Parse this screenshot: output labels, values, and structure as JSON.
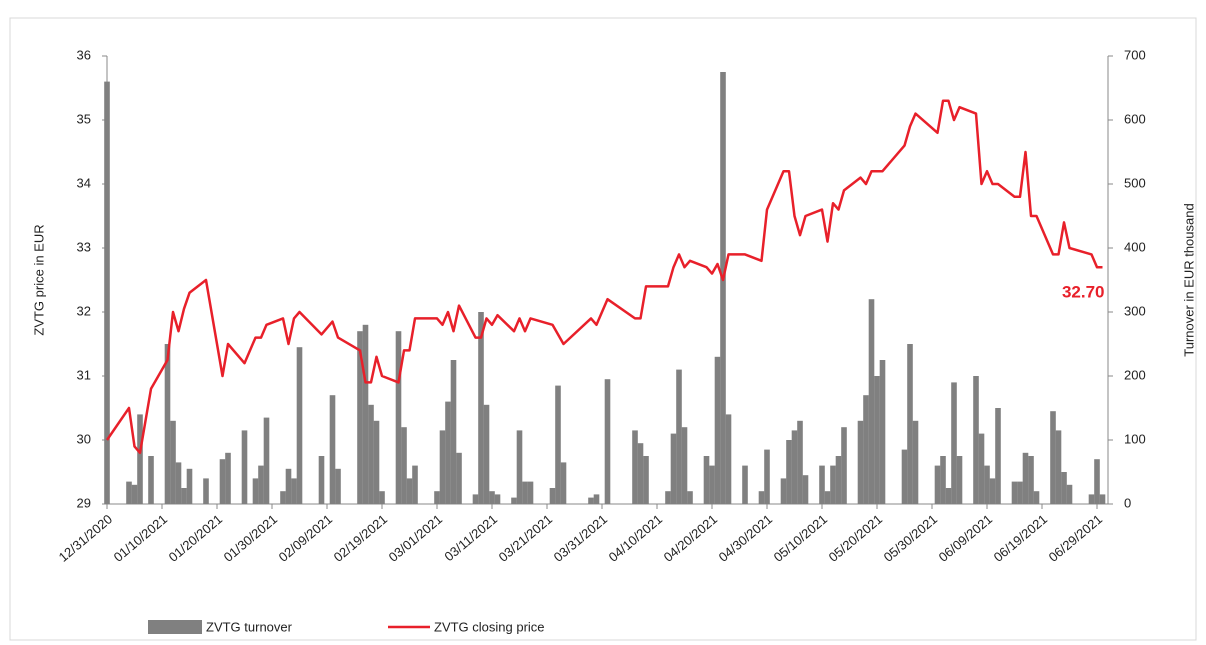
{
  "chart_data": {
    "type": "bar-line",
    "ylabel": "ZVTG price in EUR",
    "y2label": "Turnover in EUR thousand",
    "annotation": "32.70",
    "x": [
      "12/31/2020",
      "01/04/2021",
      "01/05/2021",
      "01/06/2021",
      "01/08/2021",
      "01/11/2021",
      "01/12/2021",
      "01/13/2021",
      "01/14/2021",
      "01/15/2021",
      "01/18/2021",
      "01/21/2021",
      "01/22/2021",
      "01/25/2021",
      "01/27/2021",
      "01/28/2021",
      "01/29/2021",
      "02/01/2021",
      "02/02/2021",
      "02/03/2021",
      "02/04/2021",
      "02/08/2021",
      "02/10/2021",
      "02/11/2021",
      "02/15/2021",
      "02/16/2021",
      "02/17/2021",
      "02/18/2021",
      "02/19/2021",
      "02/22/2021",
      "02/23/2021",
      "02/24/2021",
      "02/25/2021",
      "03/01/2021",
      "03/02/2021",
      "03/03/2021",
      "03/04/2021",
      "03/05/2021",
      "03/08/2021",
      "03/09/2021",
      "03/10/2021",
      "03/11/2021",
      "03/12/2021",
      "03/15/2021",
      "03/16/2021",
      "03/17/2021",
      "03/18/2021",
      "03/22/2021",
      "03/23/2021",
      "03/24/2021",
      "03/29/2021",
      "03/30/2021",
      "04/01/2021",
      "04/06/2021",
      "04/07/2021",
      "04/08/2021",
      "04/12/2021",
      "04/13/2021",
      "04/14/2021",
      "04/15/2021",
      "04/16/2021",
      "04/19/2021",
      "04/20/2021",
      "04/21/2021",
      "04/22/2021",
      "04/23/2021",
      "04/26/2021",
      "04/29/2021",
      "04/30/2021",
      "05/03/2021",
      "05/04/2021",
      "05/05/2021",
      "05/06/2021",
      "05/07/2021",
      "05/10/2021",
      "05/11/2021",
      "05/12/2021",
      "05/13/2021",
      "05/14/2021",
      "05/17/2021",
      "05/18/2021",
      "05/19/2021",
      "05/20/2021",
      "05/21/2021",
      "05/25/2021",
      "05/26/2021",
      "05/27/2021",
      "05/31/2021",
      "06/01/2021",
      "06/02/2021",
      "06/03/2021",
      "06/04/2021",
      "06/07/2021",
      "06/08/2021",
      "06/09/2021",
      "06/10/2021",
      "06/11/2021",
      "06/14/2021",
      "06/15/2021",
      "06/16/2021",
      "06/17/2021",
      "06/18/2021",
      "06/21/2021",
      "06/22/2021",
      "06/23/2021",
      "06/24/2021",
      "06/28/2021",
      "06/29/2021",
      "06/30/2021"
    ],
    "series": [
      {
        "name": "ZVTG turnover",
        "type": "bar",
        "axis": "y2",
        "color": "#808080",
        "values": [
          660,
          35,
          30,
          140,
          75,
          250,
          130,
          65,
          25,
          55,
          40,
          70,
          80,
          115,
          40,
          60,
          135,
          20,
          55,
          40,
          245,
          75,
          170,
          55,
          270,
          280,
          155,
          130,
          20,
          270,
          120,
          40,
          60,
          20,
          115,
          160,
          225,
          80,
          15,
          300,
          155,
          20,
          15,
          10,
          115,
          35,
          35,
          25,
          185,
          65,
          10,
          15,
          195,
          115,
          95,
          75,
          20,
          110,
          210,
          120,
          20,
          75,
          60,
          230,
          675,
          140,
          60,
          20,
          85,
          40,
          100,
          115,
          130,
          45,
          60,
          20,
          60,
          75,
          120,
          130,
          170,
          320,
          200,
          225,
          85,
          250,
          130,
          60,
          75,
          25,
          190,
          75,
          200,
          110,
          60,
          40,
          150,
          35,
          35,
          80,
          75,
          20,
          145,
          115,
          50,
          30,
          15,
          70,
          15
        ]
      },
      {
        "name": "ZVTG closing price",
        "type": "line",
        "axis": "y",
        "color": "#e8202a",
        "values": [
          30.0,
          30.5,
          29.9,
          29.8,
          30.8,
          31.25,
          32.0,
          31.7,
          32.05,
          32.3,
          32.5,
          31.0,
          31.5,
          31.2,
          31.6,
          31.6,
          31.8,
          31.9,
          31.5,
          31.9,
          32.0,
          31.65,
          31.85,
          31.6,
          31.4,
          30.9,
          30.9,
          31.3,
          31.0,
          30.9,
          31.4,
          31.4,
          31.9,
          31.9,
          31.8,
          32.0,
          31.7,
          32.1,
          31.6,
          31.6,
          31.9,
          31.8,
          31.95,
          31.7,
          31.9,
          31.7,
          31.9,
          31.8,
          31.65,
          31.5,
          31.9,
          31.8,
          32.2,
          31.9,
          31.9,
          32.4,
          32.4,
          32.7,
          32.9,
          32.7,
          32.8,
          32.7,
          32.6,
          32.75,
          32.5,
          32.9,
          32.9,
          32.8,
          33.6,
          34.2,
          34.2,
          33.5,
          33.2,
          33.5,
          33.6,
          33.1,
          33.7,
          33.6,
          33.9,
          34.1,
          34.0,
          34.2,
          34.2,
          34.2,
          34.6,
          34.9,
          35.1,
          34.8,
          35.3,
          35.3,
          35.0,
          35.2,
          35.1,
          34.0,
          34.2,
          34.0,
          34.0,
          33.8,
          33.8,
          34.5,
          33.5,
          33.5,
          32.9,
          32.9,
          33.4,
          33.0,
          32.9,
          32.7,
          32.7
        ]
      }
    ],
    "xlim": [
      "12/31/2020",
      "07/01/2021"
    ],
    "xticks": [
      "12/31/2020",
      "01/10/2021",
      "01/20/2021",
      "01/30/2021",
      "02/09/2021",
      "02/19/2021",
      "03/01/2021",
      "03/11/2021",
      "03/21/2021",
      "03/31/2021",
      "04/10/2021",
      "04/20/2021",
      "04/30/2021",
      "05/10/2021",
      "05/20/2021",
      "05/30/2021",
      "06/09/2021",
      "06/19/2021",
      "06/29/2021"
    ],
    "ylim": [
      29,
      36
    ],
    "yticks": [
      29,
      30,
      31,
      32,
      33,
      34,
      35,
      36
    ],
    "y2lim": [
      0,
      700
    ],
    "y2ticks": [
      0,
      100,
      200,
      300,
      400,
      500,
      600,
      700
    ]
  }
}
